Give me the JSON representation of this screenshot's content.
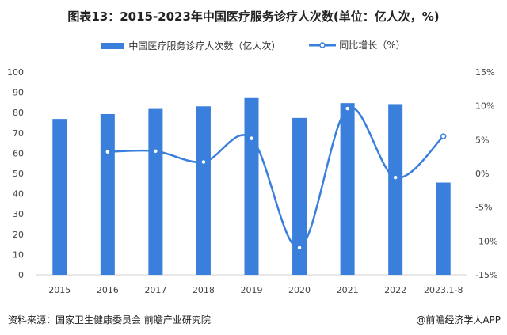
{
  "chart_data": {
    "type": "bar",
    "title": "图表13：2015-2023年中国医疗服务诊疗人次数(单位：亿人次，%)",
    "categories": [
      "2015",
      "2016",
      "2017",
      "2018",
      "2019",
      "2020",
      "2021",
      "2022",
      "2023.1-8"
    ],
    "series": [
      {
        "name": "中国医疗服务诊疗人次数（亿人次）",
        "type": "bar",
        "axis": "left",
        "color": "#3a7fdc",
        "values": [
          76.9,
          79.3,
          81.8,
          83.1,
          87.2,
          77.4,
          84.7,
          84.2,
          45.5
        ]
      },
      {
        "name": "同比增长（%）",
        "type": "line",
        "axis": "right",
        "color": "#3a7fdc",
        "values": [
          null,
          3.2,
          3.3,
          1.7,
          5.2,
          -11.0,
          9.6,
          -0.6,
          5.5
        ]
      }
    ],
    "ylim": [
      0,
      100
    ],
    "yticks": [
      "0",
      "10",
      "20",
      "30",
      "40",
      "50",
      "60",
      "70",
      "80",
      "90",
      "100"
    ],
    "y2lim": [
      -15,
      15
    ],
    "y2ticks": [
      "-15%",
      "-10%",
      "-5%",
      "0%",
      "5%",
      "10%",
      "15%"
    ],
    "grid": false,
    "legend": "top"
  },
  "footer": {
    "source": "资料来源：国家卫生健康委员会 前瞻产业研究院",
    "brand": "@前瞻经济学人APP"
  }
}
